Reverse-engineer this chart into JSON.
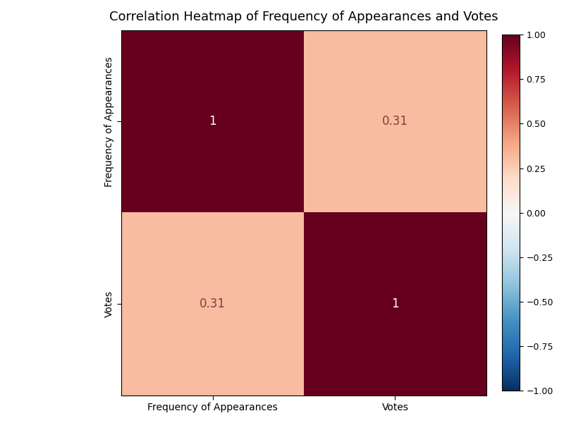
{
  "title": "Correlation Heatmap of Frequency of Appearances and Votes",
  "labels": [
    "Frequency of Appearances",
    "Votes"
  ],
  "matrix": [
    [
      1.0,
      0.31
    ],
    [
      0.31,
      1.0
    ]
  ],
  "cmap": "RdBu_r",
  "vmin": -1.0,
  "vmax": 1.0,
  "figsize": [
    8.0,
    6.0
  ],
  "dpi": 100,
  "title_fontsize": 13,
  "annot_fontsize": 12,
  "annot_color_diag": "white",
  "annot_color_off": "#8b3a3a",
  "tick_fontsize": 10,
  "cbar_tick_fontsize": 9,
  "cbar_ticks": [
    -1.0,
    -0.75,
    -0.5,
    -0.25,
    0.0,
    0.25,
    0.5,
    0.75,
    1.0
  ],
  "cbar_ticklabels": [
    "−1.00",
    "−0.75",
    "−0.50",
    "−0.25",
    "0.00",
    "0.25",
    "0.50",
    "0.75",
    "1.00"
  ]
}
